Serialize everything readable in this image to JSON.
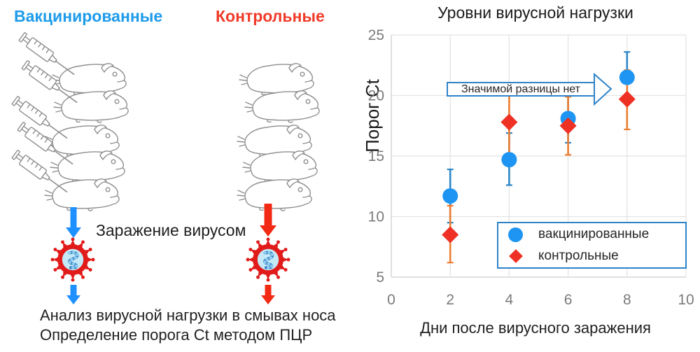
{
  "diagram": {
    "vaccinated_label": "Вакцинированные",
    "control_label": "Контрольные",
    "infection_label": "Заражение вирусом",
    "analysis_line1": "Анализ вирусной нагрузки в смывах носа",
    "analysis_line2": "Определение порога Ct методом ПЦР",
    "hamsters_per_group": 5,
    "colors": {
      "vaccinated": "#1E9BE9",
      "control": "#F03A28"
    }
  },
  "chart_data": {
    "type": "scatter",
    "title": "Уровни вирусной нагрузки",
    "xlabel": "Дни после вирусного заражения",
    "ylabel": "Порог Ct",
    "xlim": [
      0,
      10
    ],
    "ylim": [
      5,
      25
    ],
    "x_ticks": [
      0,
      2,
      4,
      6,
      8,
      10
    ],
    "y_ticks": [
      5,
      10,
      15,
      20,
      25
    ],
    "grid": true,
    "legend_position": "lower right",
    "annotation": "Значимой разницы нет",
    "series": [
      {
        "name": "вакцинированные",
        "marker": "circle",
        "color": "#1E95F2",
        "errorbar_color": "#2E86C8",
        "x": [
          2,
          4,
          6,
          8
        ],
        "y": [
          11.7,
          14.7,
          18.1,
          21.5
        ],
        "err_lo": [
          9.5,
          12.6,
          16.1,
          19.4
        ],
        "err_hi": [
          13.9,
          16.9,
          20.1,
          23.6
        ]
      },
      {
        "name": "контрольные",
        "marker": "diamond",
        "color": "#EE3124",
        "errorbar_color": "#ED7D31",
        "x": [
          2,
          4,
          6,
          8
        ],
        "y": [
          8.5,
          17.8,
          17.5,
          19.7
        ],
        "err_lo": [
          6.2,
          15.2,
          15.1,
          17.2
        ],
        "err_hi": [
          10.9,
          20.6,
          19.9,
          22.1
        ]
      }
    ]
  }
}
